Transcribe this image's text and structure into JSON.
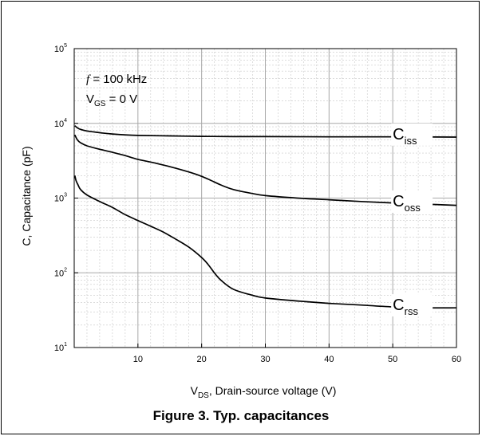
{
  "caption": "Figure 3. Typ. capacitances",
  "chart_data": {
    "type": "line",
    "xlabel": {
      "main": "V",
      "sub": "DS",
      "rest": ", Drain-source voltage (V)"
    },
    "ylabel": "C, Capacitance (pF)",
    "xlim": [
      0,
      60
    ],
    "ylim": [
      10,
      100000
    ],
    "yscale": "log",
    "x_ticks": [
      10,
      20,
      30,
      40,
      50,
      60
    ],
    "y_ticks": [
      {
        "value": 10,
        "base": "10",
        "exp": "1"
      },
      {
        "value": 100,
        "base": "10",
        "exp": "2"
      },
      {
        "value": 1000,
        "base": "10",
        "exp": "3"
      },
      {
        "value": 10000,
        "base": "10",
        "exp": "4"
      },
      {
        "value": 100000,
        "base": "10",
        "exp": "5"
      }
    ],
    "grid": true,
    "annotations": {
      "freq_var": "f",
      "freq_text": " = 100 kHz",
      "vgs_main": "V",
      "vgs_sub": "GS",
      "vgs_rest": " = 0 V"
    },
    "series": [
      {
        "name": "Ciss",
        "label_main": "C",
        "label_sub": "iss",
        "x": [
          0.1,
          0.5,
          1,
          2,
          4,
          6,
          10,
          15,
          20,
          25,
          30,
          40,
          50,
          60
        ],
        "y": [
          9300,
          8700,
          8300,
          7900,
          7500,
          7200,
          6900,
          6800,
          6700,
          6650,
          6650,
          6600,
          6600,
          6550
        ]
      },
      {
        "name": "Coss",
        "label_main": "C",
        "label_sub": "oss",
        "x": [
          0.1,
          0.5,
          1,
          2,
          4,
          6,
          8,
          10,
          13,
          16,
          19,
          21,
          23,
          25,
          28,
          30,
          35,
          40,
          45,
          50,
          55,
          60
        ],
        "y": [
          7000,
          6000,
          5500,
          5000,
          4500,
          4100,
          3700,
          3300,
          2900,
          2500,
          2100,
          1800,
          1500,
          1300,
          1150,
          1080,
          1000,
          950,
          900,
          860,
          830,
          800
        ]
      },
      {
        "name": "Crss",
        "label_main": "C",
        "label_sub": "rss",
        "x": [
          0.1,
          0.3,
          0.6,
          1,
          2,
          4,
          6,
          8,
          10,
          12,
          14,
          16,
          18,
          20,
          21,
          22,
          23,
          25,
          28,
          30,
          35,
          40,
          45,
          50,
          55,
          60
        ],
        "y": [
          2000,
          1700,
          1500,
          1300,
          1100,
          900,
          750,
          600,
          500,
          420,
          350,
          280,
          220,
          160,
          130,
          100,
          80,
          60,
          50,
          46,
          42,
          39,
          37,
          35,
          34,
          34
        ]
      }
    ]
  }
}
